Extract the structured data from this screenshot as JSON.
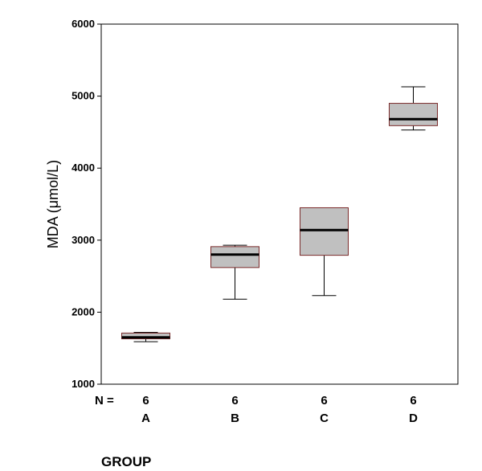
{
  "chart_data": {
    "type": "boxplot",
    "ylabel": "MDA (μmol/L)",
    "xlabel": "GROUP",
    "ylim": [
      1000,
      6000
    ],
    "yticks": [
      1000,
      2000,
      3000,
      4000,
      5000,
      6000
    ],
    "n_label": "N =",
    "categories": [
      "A",
      "B",
      "C",
      "D"
    ],
    "n": [
      "6",
      "6",
      "6",
      "6"
    ],
    "boxes": [
      {
        "category": "A",
        "min": 1590,
        "q1": 1630,
        "median": 1650,
        "q3": 1710,
        "max": 1720
      },
      {
        "category": "B",
        "min": 2180,
        "q1": 2620,
        "median": 2800,
        "q3": 2910,
        "max": 2930
      },
      {
        "category": "C",
        "min": 2230,
        "q1": 2790,
        "median": 3140,
        "q3": 3450,
        "max": 3450
      },
      {
        "category": "D",
        "min": 4530,
        "q1": 4590,
        "median": 4680,
        "q3": 4900,
        "max": 5130
      }
    ],
    "box_fill": "#c0c0c0",
    "box_stroke": "#7a2a2a",
    "median_color": "#000000",
    "grid": false
  }
}
